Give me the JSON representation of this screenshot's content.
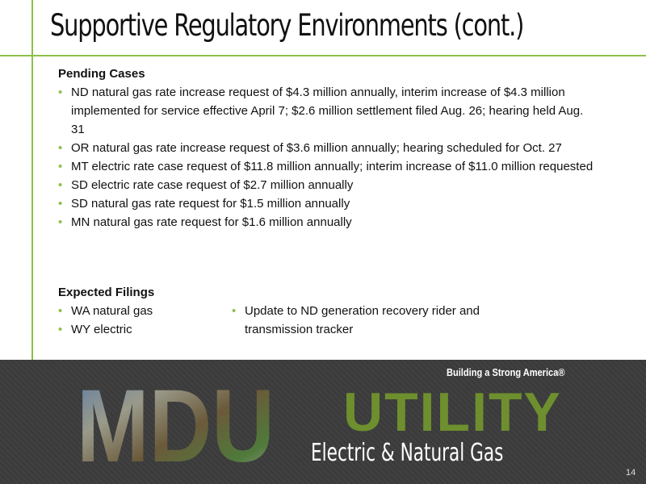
{
  "header": {
    "title": "Supportive Regulatory Environments (cont.)"
  },
  "pending": {
    "heading": "Pending Cases",
    "items": [
      "ND natural gas rate increase request of $4.3 million annually, interim increase of $4.3 million implemented for service effective April 7; $2.6 million settlement filed Aug. 26; hearing held Aug. 31",
      "OR natural gas rate increase request of $3.6 million annually; hearing scheduled for Oct. 27",
      "MT electric rate case request of $11.8 million annually; interim increase of $11.0 million requested",
      "SD electric rate case request of $2.7 million annually",
      "SD natural gas rate request for $1.5 million annually",
      "MN natural gas rate request for $1.6 million annually"
    ]
  },
  "expected": {
    "heading": "Expected Filings",
    "left": [
      "WA natural gas",
      "WY electric"
    ],
    "right": [
      "Update to ND generation recovery rider and transmission tracker"
    ]
  },
  "footer": {
    "logo": "MDU",
    "tagline": "Building a Strong America®",
    "brand": "UTILITY",
    "subtitle": "Electric & Natural Gas",
    "page": "14"
  }
}
